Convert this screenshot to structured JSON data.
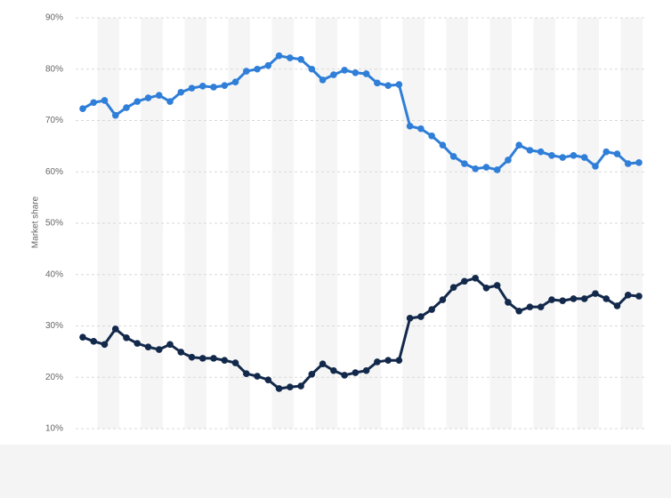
{
  "chart_data": {
    "type": "line",
    "y_label": "Market share",
    "categories": [
      null,
      null,
      null,
      null,
      null,
      null,
      null,
      null,
      null,
      null,
      null,
      null,
      null,
      null,
      null,
      null,
      null,
      null,
      null,
      null,
      null,
      null,
      null,
      null,
      null,
      null,
      null,
      null,
      null,
      null,
      null,
      null,
      null,
      null,
      null,
      null,
      null,
      null,
      null,
      null,
      null,
      null,
      null,
      null,
      null,
      null,
      null,
      null,
      null,
      null,
      null,
      null
    ],
    "series": [
      {
        "color": "#2f7ed8",
        "values": [
          72.3,
          73.5,
          73.9,
          71,
          72.5,
          73.7,
          74.4,
          74.9,
          73.7,
          75.5,
          76.3,
          76.7,
          76.5,
          76.8,
          77.5,
          79.6,
          80,
          80.7,
          82.6,
          82.2,
          81.9,
          80,
          77.9,
          78.9,
          79.8,
          79.3,
          79.1,
          77.3,
          76.8,
          77,
          68.9,
          68.4,
          67,
          65.2,
          63,
          61.6,
          60.6,
          60.9,
          60.4,
          62.3,
          65.2,
          64.2,
          63.9,
          63.2,
          62.8,
          63.2,
          62.8,
          61.1,
          63.9,
          63.5,
          61.6,
          61.8
        ]
      },
      {
        "color": "#13294b",
        "values": [
          27.8,
          27,
          26.4,
          29.4,
          27.7,
          26.6,
          25.9,
          25.4,
          26.4,
          24.9,
          23.9,
          23.7,
          23.7,
          23.3,
          22.8,
          20.7,
          20.2,
          19.5,
          17.8,
          18.1,
          18.3,
          20.6,
          22.6,
          21.3,
          20.4,
          20.9,
          21.3,
          23,
          23.3,
          23.3,
          31.5,
          31.8,
          33.2,
          35.1,
          37.5,
          38.7,
          39.3,
          37.4,
          37.9,
          34.6,
          32.9,
          33.7,
          33.7,
          35.1,
          34.9,
          35.3,
          35.3,
          36.3,
          35.3,
          33.9,
          36,
          35.8
        ]
      }
    ],
    "ylim": [
      10,
      90
    ],
    "yticks": [
      {
        "value": 10,
        "label": "10%"
      },
      {
        "value": 20,
        "label": "20%"
      },
      {
        "value": 30,
        "label": "30%"
      },
      {
        "value": 40,
        "label": "40%"
      },
      {
        "value": 50,
        "label": "50%"
      },
      {
        "value": 60,
        "label": "60%"
      },
      {
        "value": 70,
        "label": "70%"
      },
      {
        "value": 80,
        "label": "80%"
      },
      {
        "value": 90,
        "label": "90%"
      }
    ],
    "grid": true
  }
}
